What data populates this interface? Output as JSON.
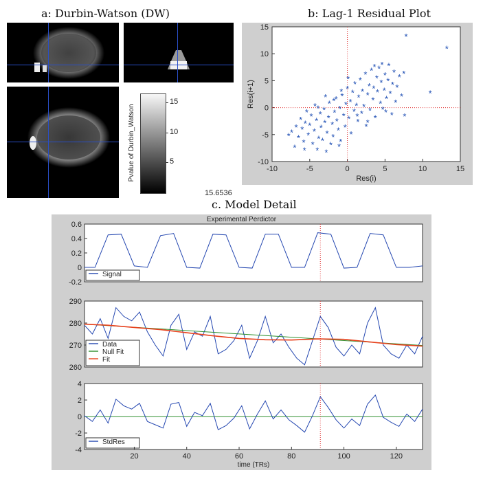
{
  "titles": {
    "a": "a: Durbin-Watson (DW)",
    "b": "b: Lag-1 Residual Plot",
    "c": "c. Model Detail"
  },
  "dw_readout": "15.6536",
  "colorbar": {
    "label": "Pvalue of Durbin_Watson",
    "ticks": [
      5,
      10,
      15
    ],
    "range": [
      0,
      16.5
    ]
  },
  "colors": {
    "crosshair": "#2a4fc8",
    "scatter": "#1f4fb4",
    "signal": "#2346b0",
    "fit": "#e8401c",
    "null_fit": "#2c8f2c",
    "zero_line": "#2c8f2c",
    "dotted": "#e03030",
    "figure_bg": "#cfcfcf"
  },
  "chart_data": [
    {
      "id": "lag1",
      "type": "scatter",
      "xlabel": "Res(i)",
      "ylabel": "Res(i+1)",
      "xlim": [
        -10,
        15
      ],
      "ylim": [
        -10,
        15
      ],
      "xticks": [
        -10,
        -5,
        0,
        5,
        10,
        15
      ],
      "yticks": [
        -10,
        -5,
        0,
        5,
        10,
        15
      ],
      "ref_lines": {
        "x": 0,
        "y": 0
      },
      "points": [
        [
          -7.8,
          -5.2
        ],
        [
          -7.4,
          -4.6
        ],
        [
          -7.0,
          -7.4
        ],
        [
          -6.8,
          -3.6
        ],
        [
          -6.5,
          -5.6
        ],
        [
          -6.2,
          -2.2
        ],
        [
          -6.0,
          -4.0
        ],
        [
          -5.8,
          -6.4
        ],
        [
          -5.6,
          -2.9
        ],
        [
          -5.4,
          -0.8
        ],
        [
          -5.2,
          -5.1
        ],
        [
          -5.0,
          -3.3
        ],
        [
          -4.8,
          -1.6
        ],
        [
          -4.6,
          -6.8
        ],
        [
          -4.4,
          -4.4
        ],
        [
          -4.3,
          0.3
        ],
        [
          -4.1,
          -2.4
        ],
        [
          -4.0,
          -7.9
        ],
        [
          -3.8,
          -5.7
        ],
        [
          -3.6,
          -1.2
        ],
        [
          -3.5,
          -3.7
        ],
        [
          -3.3,
          -6.1
        ],
        [
          -3.1,
          -0.4
        ],
        [
          -3.0,
          -2.8
        ],
        [
          -2.8,
          -8.3
        ],
        [
          -2.7,
          -4.8
        ],
        [
          -2.5,
          -1.9
        ],
        [
          -2.4,
          0.8
        ],
        [
          -2.2,
          -6.9
        ],
        [
          -2.0,
          -3.1
        ],
        [
          -1.9,
          -5.4
        ],
        [
          -1.7,
          -0.9
        ],
        [
          -1.5,
          1.6
        ],
        [
          -1.4,
          -2.5
        ],
        [
          -1.2,
          -4.2
        ],
        [
          -1.0,
          -0.2
        ],
        [
          -0.9,
          -6.3
        ],
        [
          -0.7,
          2.2
        ],
        [
          -0.5,
          -1.5
        ],
        [
          -0.3,
          -3.6
        ],
        [
          -0.2,
          0.6
        ],
        [
          0.0,
          3.5
        ],
        [
          0.2,
          -2.0
        ],
        [
          0.4,
          1.1
        ],
        [
          0.5,
          -4.9
        ],
        [
          0.7,
          2.8
        ],
        [
          0.9,
          -0.7
        ],
        [
          1.0,
          4.4
        ],
        [
          1.2,
          0.4
        ],
        [
          1.4,
          -2.6
        ],
        [
          1.5,
          1.9
        ],
        [
          1.7,
          5.1
        ],
        [
          1.9,
          -1.1
        ],
        [
          2.0,
          3.0
        ],
        [
          2.2,
          0.2
        ],
        [
          2.4,
          6.2
        ],
        [
          2.5,
          -3.5
        ],
        [
          2.7,
          2.4
        ],
        [
          2.9,
          4.0
        ],
        [
          3.0,
          -0.5
        ],
        [
          3.2,
          6.9
        ],
        [
          3.4,
          1.4
        ],
        [
          3.5,
          3.6
        ],
        [
          3.7,
          -1.9
        ],
        [
          3.9,
          5.5
        ],
        [
          4.0,
          2.9
        ],
        [
          4.2,
          7.3
        ],
        [
          4.4,
          0.8
        ],
        [
          4.5,
          4.7
        ],
        [
          4.7,
          -0.3
        ],
        [
          4.9,
          3.2
        ],
        [
          5.0,
          6.1
        ],
        [
          5.2,
          1.7
        ],
        [
          5.4,
          5.0
        ],
        [
          5.5,
          7.8
        ],
        [
          5.7,
          2.6
        ],
        [
          5.9,
          -1.3
        ],
        [
          6.0,
          4.3
        ],
        [
          6.2,
          6.6
        ],
        [
          6.4,
          1.0
        ],
        [
          6.6,
          3.8
        ],
        [
          6.9,
          5.7
        ],
        [
          7.2,
          2.1
        ],
        [
          7.5,
          6.3
        ],
        [
          7.8,
          13.2
        ],
        [
          7.6,
          -1.6
        ],
        [
          -1.8,
          1.3
        ],
        [
          1.3,
          -1.6
        ],
        [
          -0.8,
          3.0
        ],
        [
          -3.9,
          -0.1
        ],
        [
          2.7,
          -2.7
        ],
        [
          0.1,
          5.4
        ],
        [
          -2.9,
          2.0
        ],
        [
          3.6,
          7.6
        ],
        [
          -5.7,
          -7.9
        ],
        [
          -1.1,
          -7.2
        ],
        [
          5.1,
          -0.8
        ],
        [
          4.6,
          8.0
        ],
        [
          11.0,
          2.7
        ],
        [
          13.2,
          11.0
        ]
      ]
    },
    {
      "id": "predictor",
      "type": "line",
      "title": "Experimental Perdictor",
      "xlim": [
        1,
        130
      ],
      "ylim": [
        -0.2,
        0.6
      ],
      "yticks": [
        -0.2,
        0,
        0.2,
        0.4,
        0.6
      ],
      "legend": [
        "Signal"
      ],
      "marker_x": 91,
      "series": [
        {
          "name": "Signal",
          "x": [
            1,
            5,
            10,
            15,
            20,
            25,
            30,
            35,
            40,
            45,
            50,
            55,
            60,
            65,
            70,
            75,
            80,
            85,
            90,
            95,
            100,
            105,
            110,
            115,
            120,
            125,
            130
          ],
          "y": [
            0,
            0,
            0.45,
            0.46,
            0.02,
            0,
            0.44,
            0.47,
            0,
            -0.01,
            0.46,
            0.45,
            0,
            -0.01,
            0.46,
            0.46,
            0,
            0,
            0.48,
            0.46,
            -0.01,
            0,
            0.47,
            0.45,
            0,
            0,
            0.02
          ]
        }
      ]
    },
    {
      "id": "data_fit",
      "type": "line",
      "xlim": [
        1,
        130
      ],
      "ylim": [
        260,
        290
      ],
      "yticks": [
        260,
        270,
        280,
        290
      ],
      "legend": [
        "Data",
        "Null Fit",
        "Fit"
      ],
      "marker_x": 91,
      "series": [
        {
          "name": "Data",
          "x": [
            1,
            4,
            7,
            10,
            13,
            16,
            19,
            22,
            25,
            28,
            31,
            34,
            37,
            40,
            43,
            46,
            49,
            52,
            55,
            58,
            61,
            64,
            67,
            70,
            73,
            76,
            79,
            82,
            85,
            88,
            91,
            94,
            97,
            100,
            103,
            106,
            109,
            112,
            115,
            118,
            121,
            124,
            127,
            130
          ],
          "y": [
            279,
            275,
            282,
            273,
            287,
            283,
            281,
            285,
            276,
            270,
            265,
            279,
            284,
            268,
            276,
            274,
            283,
            266,
            268,
            272,
            279,
            264,
            272,
            283,
            271,
            275,
            269,
            264,
            261,
            272,
            283,
            278,
            269,
            265,
            270,
            266,
            280,
            287,
            270,
            266,
            264,
            270,
            266,
            274
          ]
        },
        {
          "name": "Null Fit",
          "x": [
            1,
            130
          ],
          "y": [
            279.5,
            269.8
          ]
        },
        {
          "name": "Fit",
          "x": [
            1,
            10,
            20,
            30,
            40,
            50,
            60,
            70,
            80,
            90,
            100,
            110,
            120,
            130
          ],
          "y": [
            279.5,
            279,
            278,
            277,
            275.6,
            274.2,
            273,
            272.4,
            272.3,
            272.8,
            272.6,
            271.4,
            270.2,
            269.5
          ]
        }
      ]
    },
    {
      "id": "stdres",
      "type": "line",
      "xlabel": "time (TRs)",
      "xlim": [
        1,
        130
      ],
      "ylim": [
        -4,
        4
      ],
      "yticks": [
        -4,
        -2,
        0,
        2,
        4
      ],
      "xticks": [
        20,
        40,
        60,
        80,
        100,
        120
      ],
      "legend": [
        "StdRes"
      ],
      "marker_x": 91,
      "series": [
        {
          "name": "StdRes",
          "x": [
            1,
            4,
            7,
            10,
            13,
            16,
            19,
            22,
            25,
            28,
            31,
            34,
            37,
            40,
            43,
            46,
            49,
            52,
            55,
            58,
            61,
            64,
            67,
            70,
            73,
            76,
            79,
            82,
            85,
            88,
            91,
            94,
            97,
            100,
            103,
            106,
            109,
            112,
            115,
            118,
            121,
            124,
            127,
            130
          ],
          "y": [
            0.1,
            -0.6,
            0.8,
            -0.8,
            2.1,
            1.3,
            0.9,
            1.6,
            -0.6,
            -1.0,
            -1.4,
            1.5,
            1.7,
            -1.2,
            0.5,
            0.1,
            1.6,
            -1.6,
            -1.1,
            -0.2,
            1.3,
            -1.5,
            0.3,
            1.9,
            -0.3,
            0.8,
            -0.4,
            -1.1,
            -1.9,
            0.1,
            2.4,
            1.1,
            -0.4,
            -1.4,
            -0.3,
            -1.1,
            1.5,
            2.6,
            -0.1,
            -0.7,
            -1.2,
            0.3,
            -0.6,
            0.9
          ]
        }
      ]
    }
  ]
}
